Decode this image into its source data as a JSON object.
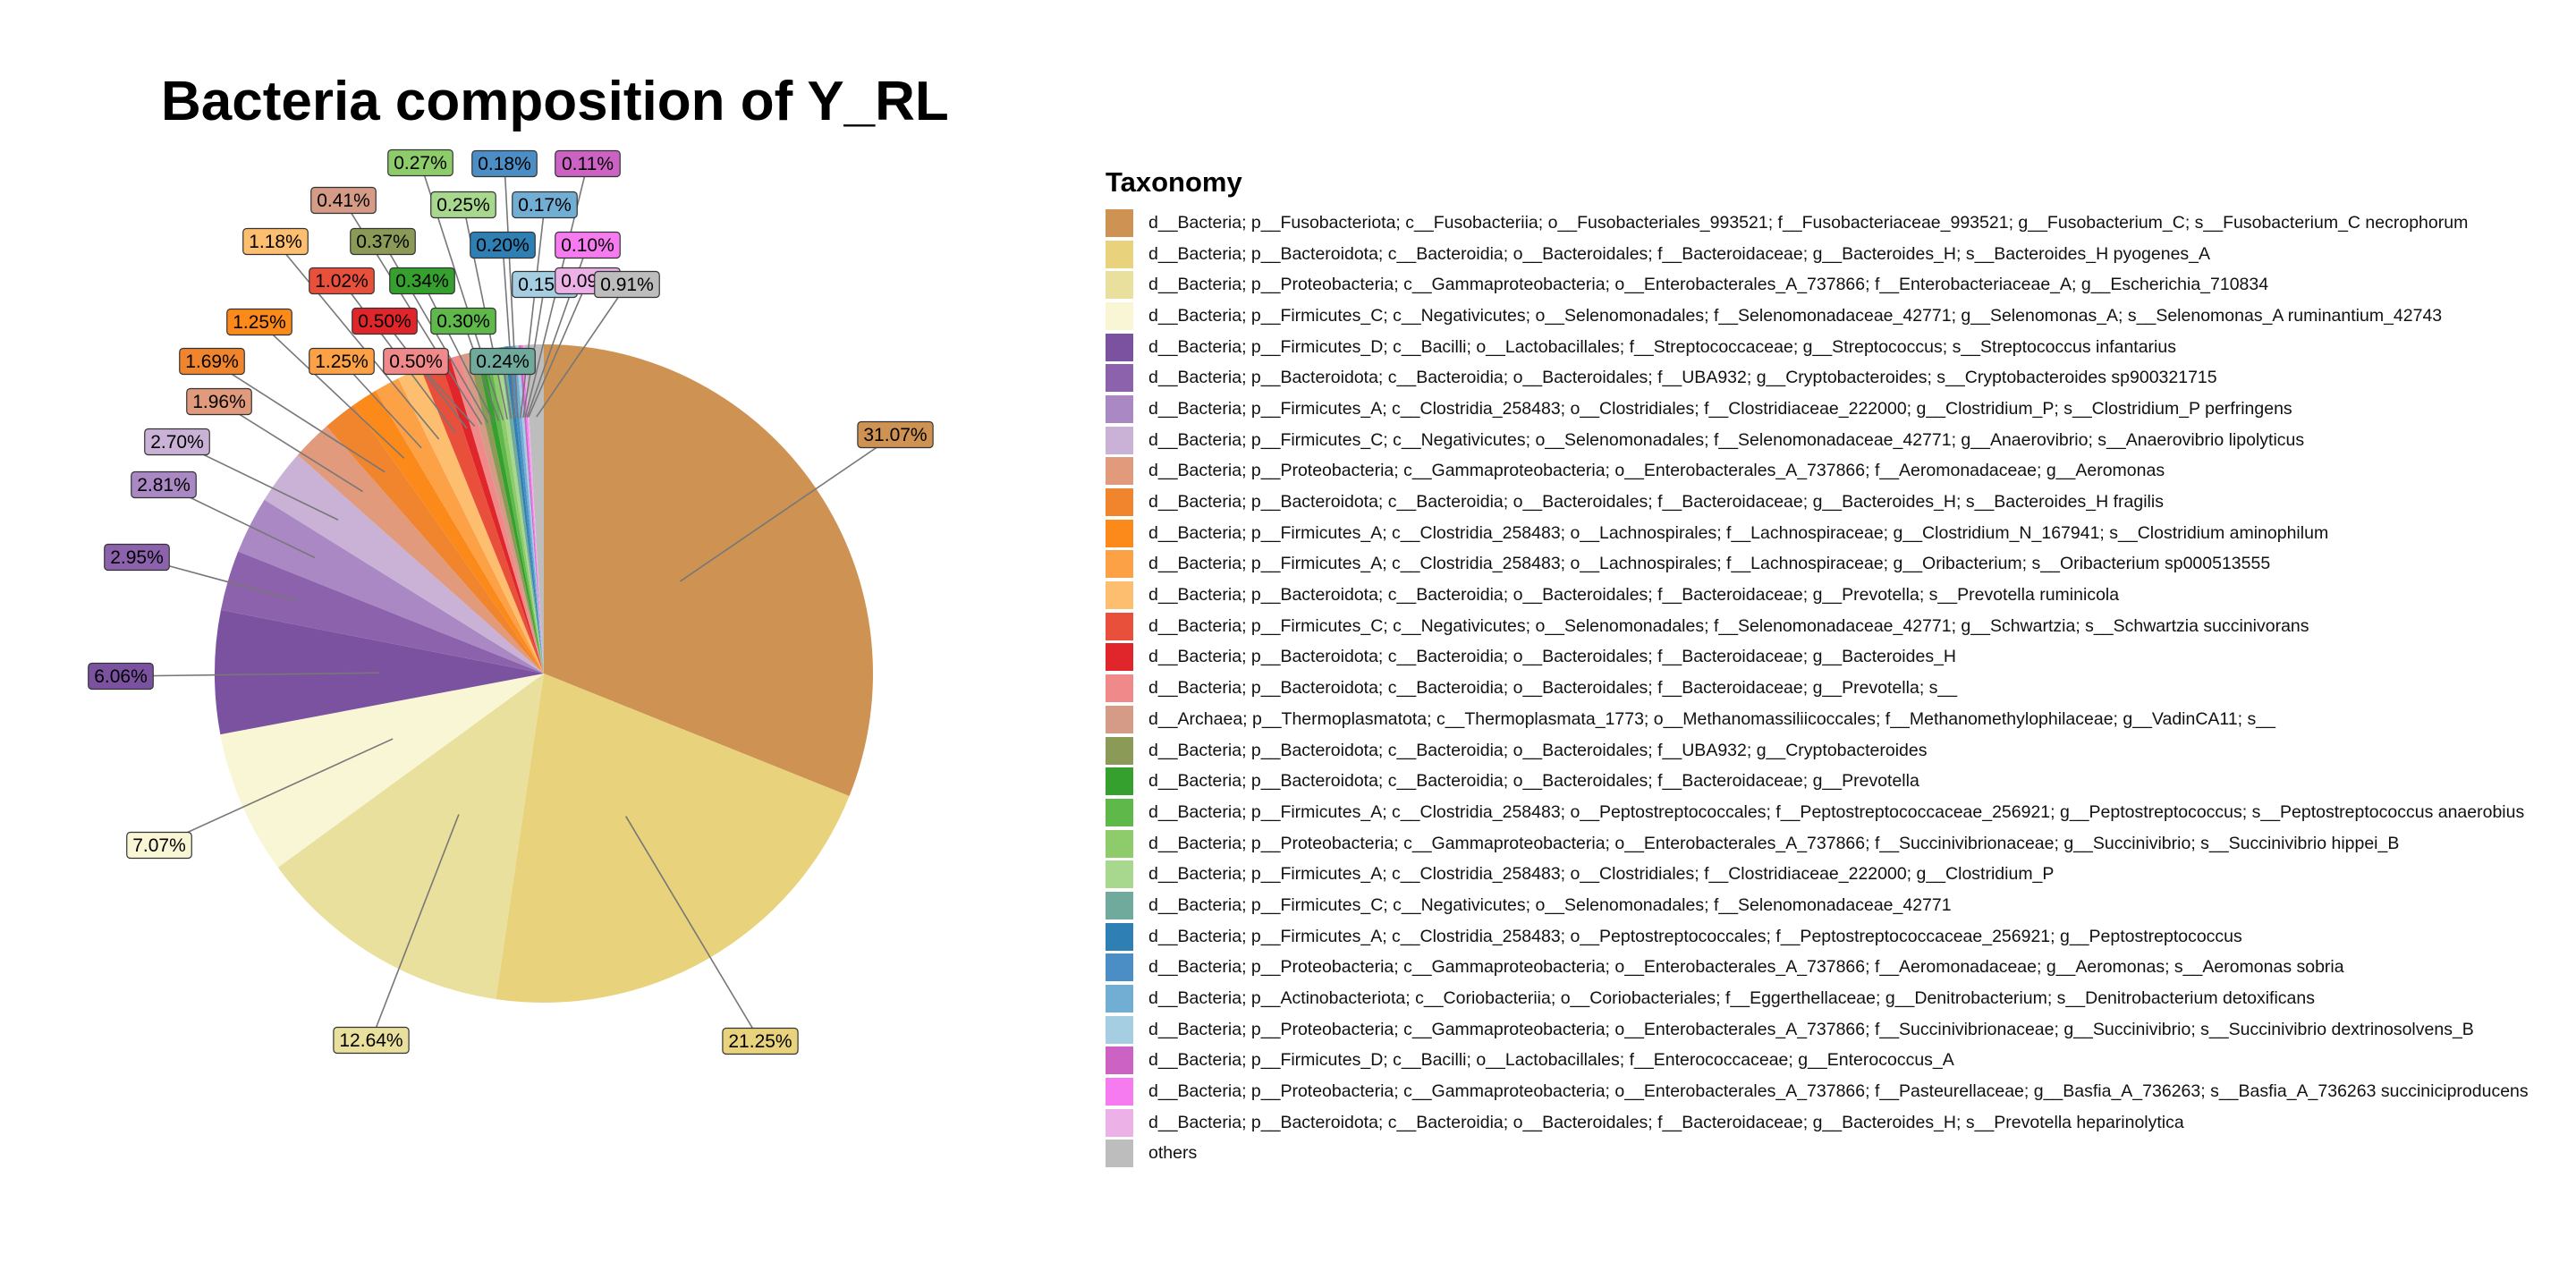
{
  "chart_data": {
    "type": "pie",
    "title": "Bacteria composition of Y_RL",
    "legend_title": "Taxonomy",
    "legend_position": "right",
    "slices": [
      {
        "label": "d__Bacteria; p__Fusobacteriota; c__Fusobacteriia; o__Fusobacteriales_993521; f__Fusobacteriaceae_993521; g__Fusobacterium_C; s__Fusobacterium_C necrophorum",
        "value": 31.07,
        "value_label": "31.07%",
        "color": "#CE9353"
      },
      {
        "label": "d__Bacteria; p__Bacteroidota; c__Bacteroidia; o__Bacteroidales; f__Bacteroidaceae; g__Bacteroides_H; s__Bacteroides_H pyogenes_A",
        "value": 21.25,
        "value_label": "21.25%",
        "color": "#E8D27C"
      },
      {
        "label": "d__Bacteria; p__Proteobacteria; c__Gammaproteobacteria; o__Enterobacterales_A_737866; f__Enterobacteriaceae_A; g__Escherichia_710834",
        "value": 12.64,
        "value_label": "12.64%",
        "color": "#EAE09D"
      },
      {
        "label": "d__Bacteria; p__Firmicutes_C; c__Negativicutes; o__Selenomonadales; f__Selenomonadaceae_42771; g__Selenomonas_A; s__Selenomonas_A ruminantium_42743",
        "value": 7.07,
        "value_label": "7.07%",
        "color": "#F9F6D6"
      },
      {
        "label": "d__Bacteria; p__Firmicutes_D; c__Bacilli; o__Lactobacillales; f__Streptococcaceae; g__Streptococcus; s__Streptococcus infantarius",
        "value": 6.06,
        "value_label": "6.06%",
        "color": "#7B529F"
      },
      {
        "label": "d__Bacteria; p__Bacteroidota; c__Bacteroidia; o__Bacteroidales; f__UBA932; g__Cryptobacteroides; s__Cryptobacteroides sp900321715",
        "value": 2.95,
        "value_label": "2.95%",
        "color": "#8C62AC"
      },
      {
        "label": "d__Bacteria; p__Firmicutes_A; c__Clostridia_258483; o__Clostridiales; f__Clostridiaceae_222000; g__Clostridium_P; s__Clostridium_P perfringens",
        "value": 2.81,
        "value_label": "2.81%",
        "color": "#A988C4"
      },
      {
        "label": "d__Bacteria; p__Firmicutes_C; c__Negativicutes; o__Selenomonadales; f__Selenomonadaceae_42771; g__Anaerovibrio; s__Anaerovibrio lipolyticus",
        "value": 2.7,
        "value_label": "2.70%",
        "color": "#C9B2D6"
      },
      {
        "label": "d__Bacteria; p__Proteobacteria; c__Gammaproteobacteria; o__Enterobacterales_A_737866; f__Aeromonadaceae; g__Aeromonas",
        "value": 1.96,
        "value_label": "1.96%",
        "color": "#E19A7C"
      },
      {
        "label": "d__Bacteria; p__Bacteroidota; c__Bacteroidia; o__Bacteroidales; f__Bacteroidaceae; g__Bacteroides_H; s__Bacteroides_H fragilis",
        "value": 1.69,
        "value_label": "1.69%",
        "color": "#F0852D"
      },
      {
        "label": "d__Bacteria; p__Firmicutes_A; c__Clostridia_258483; o__Lachnospirales; f__Lachnospiraceae; g__Clostridium_N_167941; s__Clostridium aminophilum",
        "value": 1.25,
        "value_label": "1.25%",
        "color": "#FC8A1B"
      },
      {
        "label": "d__Bacteria; p__Firmicutes_A; c__Clostridia_258483; o__Lachnospirales; f__Lachnospiraceae; g__Oribacterium; s__Oribacterium sp000513555",
        "value": 1.25,
        "value_label": "1.25%",
        "color": "#FCA146"
      },
      {
        "label": "d__Bacteria; p__Bacteroidota; c__Bacteroidia; o__Bacteroidales; f__Bacteroidaceae; g__Prevotella; s__Prevotella ruminicola",
        "value": 1.18,
        "value_label": "1.18%",
        "color": "#FDBF6F"
      },
      {
        "label": "d__Bacteria; p__Firmicutes_C; c__Negativicutes; o__Selenomonadales; f__Selenomonadaceae_42771; g__Schwartzia; s__Schwartzia succinivorans",
        "value": 1.02,
        "value_label": "1.02%",
        "color": "#E8503C"
      },
      {
        "label": "d__Bacteria; p__Bacteroidota; c__Bacteroidia; o__Bacteroidales; f__Bacteroidaceae; g__Bacteroides_H",
        "value": 0.5,
        "value_label": "0.50%",
        "color": "#E0262B"
      },
      {
        "label": "d__Bacteria; p__Bacteroidota; c__Bacteroidia; o__Bacteroidales; f__Bacteroidaceae; g__Prevotella; s__",
        "value": 0.5,
        "value_label": "0.50%",
        "color": "#F08A8A"
      },
      {
        "label": "d__Archaea; p__Thermoplasmatota; c__Thermoplasmata_1773; o__Methanomassiliicoccales; f__Methanomethylophilaceae; g__VadinCA11; s__",
        "value": 0.41,
        "value_label": "0.41%",
        "color": "#D59B86"
      },
      {
        "label": "d__Bacteria; p__Bacteroidota; c__Bacteroidia; o__Bacteroidales; f__UBA932; g__Cryptobacteroides",
        "value": 0.37,
        "value_label": "0.37%",
        "color": "#8B9A57"
      },
      {
        "label": "d__Bacteria; p__Bacteroidota; c__Bacteroidia; o__Bacteroidales; f__Bacteroidaceae; g__Prevotella",
        "value": 0.34,
        "value_label": "0.34%",
        "color": "#35A02D"
      },
      {
        "label": "d__Bacteria; p__Firmicutes_A; c__Clostridia_258483; o__Peptostreptococcales; f__Peptostreptococcaceae_256921; g__Peptostreptococcus; s__Peptostreptococcus anaerobius",
        "value": 0.3,
        "value_label": "0.30%",
        "color": "#5FB84A"
      },
      {
        "label": "d__Bacteria; p__Proteobacteria; c__Gammaproteobacteria; o__Enterobacterales_A_737866; f__Succinivibrionaceae; g__Succinivibrio; s__Succinivibrio hippei_B",
        "value": 0.27,
        "value_label": "0.27%",
        "color": "#8DCB6B"
      },
      {
        "label": "d__Bacteria; p__Firmicutes_A; c__Clostridia_258483; o__Clostridiales; f__Clostridiaceae_222000; g__Clostridium_P",
        "value": 0.25,
        "value_label": "0.25%",
        "color": "#A8D88E"
      },
      {
        "label": "d__Bacteria; p__Firmicutes_C; c__Negativicutes; o__Selenomonadales; f__Selenomonadaceae_42771",
        "value": 0.24,
        "value_label": "0.24%",
        "color": "#6FAA9C"
      },
      {
        "label": "d__Bacteria; p__Firmicutes_A; c__Clostridia_258483; o__Peptostreptococcales; f__Peptostreptococcaceae_256921; g__Peptostreptococcus",
        "value": 0.2,
        "value_label": "0.20%",
        "color": "#2E7FB3"
      },
      {
        "label": "d__Bacteria; p__Proteobacteria; c__Gammaproteobacteria; o__Enterobacterales_A_737866; f__Aeromonadaceae; g__Aeromonas; s__Aeromonas sobria",
        "value": 0.18,
        "value_label": "0.18%",
        "color": "#4A8EC5"
      },
      {
        "label": "d__Bacteria; p__Actinobacteriota; c__Coriobacteriia; o__Coriobacteriales; f__Eggerthellaceae; g__Denitrobacterium; s__Denitrobacterium detoxificans",
        "value": 0.17,
        "value_label": "0.17%",
        "color": "#72ADD4"
      },
      {
        "label": "d__Bacteria; p__Proteobacteria; c__Gammaproteobacteria; o__Enterobacterales_A_737866; f__Succinivibrionaceae; g__Succinivibrio; s__Succinivibrio dextrinosolvens_B",
        "value": 0.15,
        "value_label": "0.15%",
        "color": "#A6CEE3"
      },
      {
        "label": "d__Bacteria; p__Firmicutes_D; c__Bacilli; o__Lactobacillales; f__Enterococcaceae; g__Enterococcus_A",
        "value": 0.11,
        "value_label": "0.11%",
        "color": "#CC63C4"
      },
      {
        "label": "d__Bacteria; p__Proteobacteria; c__Gammaproteobacteria; o__Enterobacterales_A_737866; f__Pasteurellaceae; g__Basfia_A_736263; s__Basfia_A_736263 succiniciproducens",
        "value": 0.1,
        "value_label": "0.10%",
        "color": "#F77BF0"
      },
      {
        "label": "d__Bacteria; p__Bacteroidota; c__Bacteroidia; o__Bacteroidales; f__Bacteroidaceae; g__Bacteroides_H; s__Prevotella heparinolytica",
        "value": 0.09,
        "value_label": "0.09%",
        "color": "#ECB1E6"
      },
      {
        "label": "others",
        "value": 0.91,
        "value_label": "0.91%",
        "color": "#BDBDBD"
      }
    ]
  }
}
